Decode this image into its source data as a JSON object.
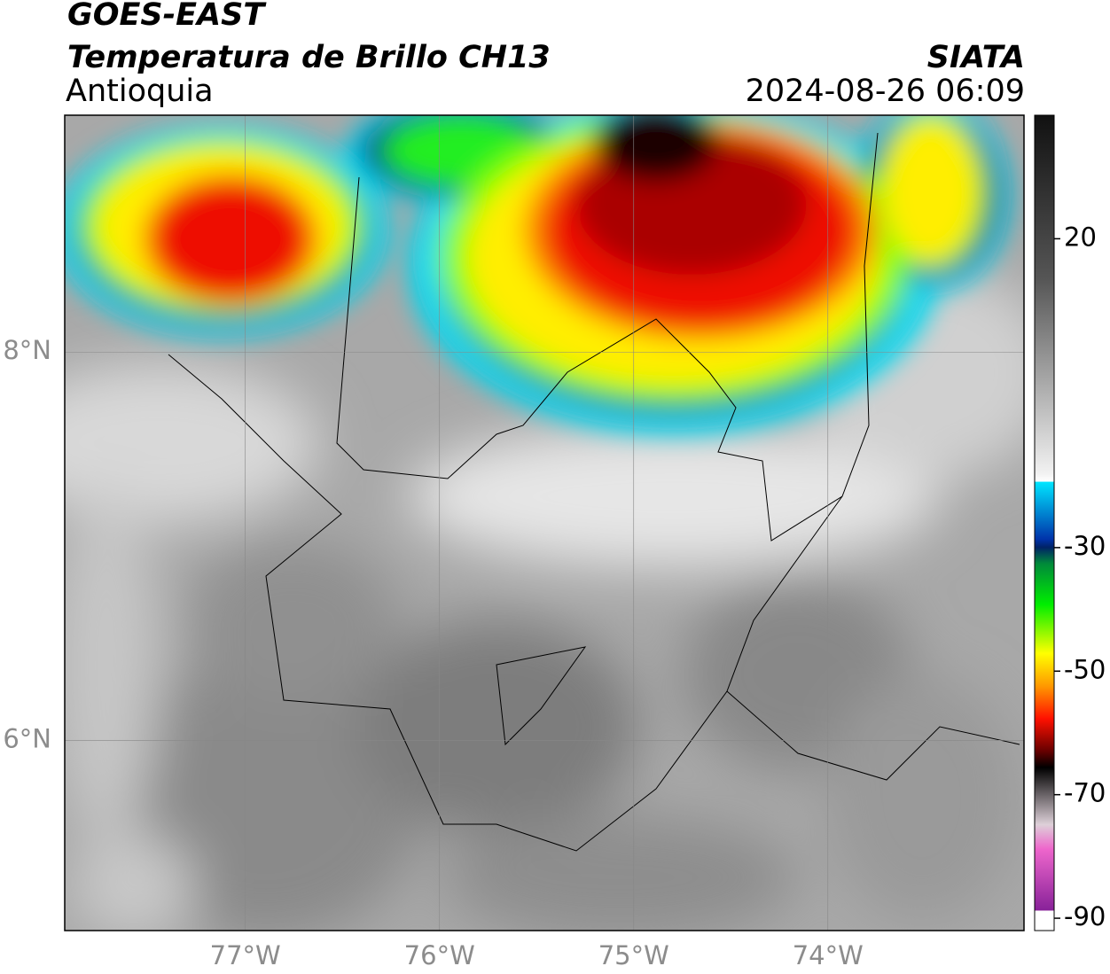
{
  "header": {
    "title": "GOES-EAST",
    "subtitle": "Temperatura de Brillo CH13",
    "region": "Antioquia",
    "source": "SIATA",
    "datetime": "2024-08-26 06:09"
  },
  "map": {
    "xlim": [
      -77.93,
      -72.99
    ],
    "ylim": [
      5.02,
      9.22
    ],
    "xticks": [
      {
        "value": -77,
        "label": "77°W"
      },
      {
        "value": -76,
        "label": "76°W"
      },
      {
        "value": -75,
        "label": "75°W"
      },
      {
        "value": -74,
        "label": "74°W"
      }
    ],
    "yticks": [
      {
        "value": 6,
        "label": "6°N"
      },
      {
        "value": 8,
        "label": "8°N"
      }
    ],
    "grid": true
  },
  "colorbar": {
    "ylim": [
      -92,
      40
    ],
    "yticks": [
      20,
      -30,
      -50,
      -70,
      -90
    ]
  }
}
